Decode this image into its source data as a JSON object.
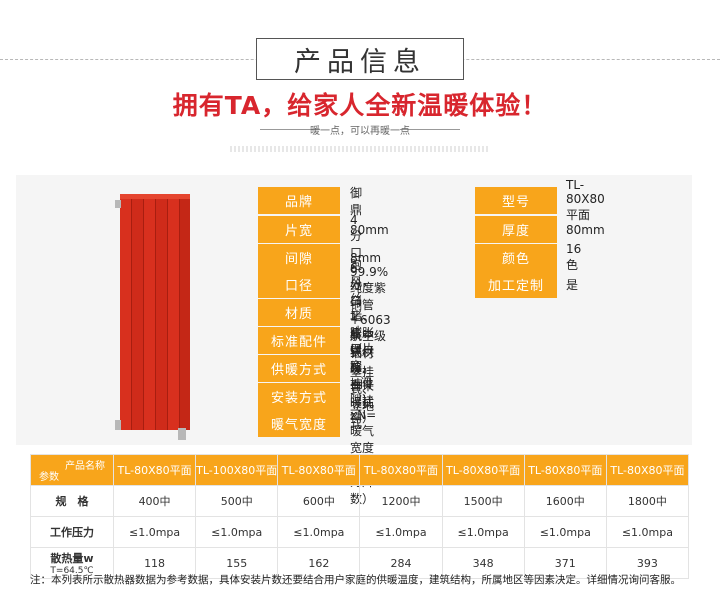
{
  "section_title": "产品信息",
  "slogan": "拥有TA，给家人全新温暖体验！",
  "sub_slogan": "暖一点，可以再暖一点",
  "product_info": {
    "brand_label": "品牌",
    "brand_value": "御鼎",
    "model_label": "型号",
    "model_value": "TL-80X80平面",
    "width_label": "片宽",
    "width_value": "80mm",
    "thickness_label": "厚度",
    "thickness_value": "80mm",
    "gap_label": "间隙",
    "gap_value": "8mm",
    "color_label": "颜色",
    "color_value": "16色",
    "bore_label": "口径",
    "bore_value": "4分口 6分口 1寸口",
    "custom_label": "加工定制",
    "custom_value": "是",
    "material_label": "材质",
    "material_value": "99.9%纯度紫铜管+6063航空级铝材",
    "accessories_label": "标准配件",
    "accessories_value": "跑风，丝堵、膨胀螺栓，挂件（挂钩）",
    "heating_label": "供暖方式",
    "heating_value": "集中式供暖、自采暖式",
    "install_label": "安装方式",
    "install_value": "壁挂式、立地式",
    "heatwidth_label": "暖气宽度",
    "heatwidth_value": "（片宽+间隙）xN=暖气宽度（N为片数）"
  },
  "spec_table": {
    "corner_top": "产品名称",
    "corner_bottom": "参数",
    "products": [
      "TL-80X80平面",
      "TL-100X80平面",
      "TL-80X80平面",
      "TL-80X80平面",
      "TL-80X80平面",
      "TL-80X80平面",
      "TL-80X80平面"
    ],
    "size_label": "规　格",
    "sizes": [
      "400中",
      "500中",
      "600中",
      "1200中",
      "1500中",
      "1600中",
      "1800中"
    ],
    "pressure_label": "工作压力",
    "pressures": [
      "≤1.0mpa",
      "≤1.0mpa",
      "≤1.0mpa",
      "≤1.0mpa",
      "≤1.0mpa",
      "≤1.0mpa",
      "≤1.0mpa"
    ],
    "heat_label": "散热量w",
    "heat_sub": "T=64.5℃",
    "heat_values": [
      "118",
      "155",
      "162",
      "284",
      "348",
      "371",
      "393"
    ]
  },
  "note": "注：本列表所示散热器数据为参考数据，具体安装片数还要结合用户家庭的供暖温度，建筑结构，所属地区等因素决定。详细情况询问客服。",
  "colors": {
    "accent_orange": "#f8a51b",
    "slogan_red": "#d8262e",
    "radiator_red": "#d8301e"
  }
}
